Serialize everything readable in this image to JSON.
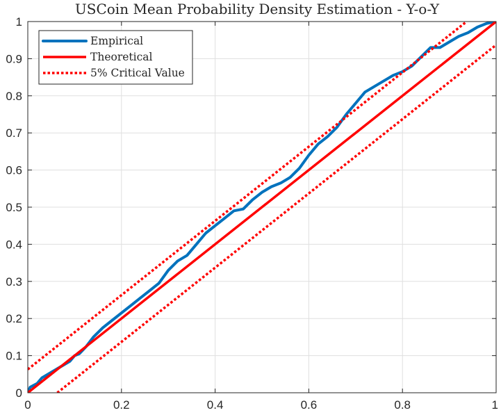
{
  "chart_data": {
    "type": "line",
    "title": "USCoin Mean Probability Density Estimation - Y-o-Y",
    "xlabel": "",
    "ylabel": "",
    "xlim": [
      0,
      1
    ],
    "ylim": [
      0,
      1
    ],
    "grid": true,
    "legend_position": "top-left",
    "x_ticks": [
      0,
      0.2,
      0.4,
      0.6,
      0.8,
      1
    ],
    "x_tick_labels": [
      "0",
      "0.2",
      "0.4",
      "0.6",
      "0.8",
      "1"
    ],
    "y_ticks": [
      0,
      0.1,
      0.2,
      0.3,
      0.4,
      0.5,
      0.6,
      0.7,
      0.8,
      0.9,
      1
    ],
    "y_tick_labels": [
      "0",
      "0.1",
      "0.2",
      "0.3",
      "0.4",
      "0.5",
      "0.6",
      "0.7",
      "0.8",
      "0.9",
      "1"
    ],
    "series": [
      {
        "name": "Empirical",
        "color": "#0072BD",
        "style": "solid",
        "x": [
          0,
          0.005,
          0.02,
          0.03,
          0.05,
          0.07,
          0.09,
          0.1,
          0.11,
          0.125,
          0.14,
          0.16,
          0.18,
          0.2,
          0.22,
          0.24,
          0.26,
          0.28,
          0.3,
          0.32,
          0.34,
          0.36,
          0.38,
          0.4,
          0.42,
          0.44,
          0.46,
          0.48,
          0.5,
          0.52,
          0.54,
          0.56,
          0.58,
          0.6,
          0.62,
          0.64,
          0.66,
          0.68,
          0.7,
          0.72,
          0.74,
          0.76,
          0.78,
          0.8,
          0.82,
          0.84,
          0.86,
          0.88,
          0.9,
          0.92,
          0.94,
          0.96,
          0.98,
          1
        ],
        "y": [
          0,
          0.015,
          0.025,
          0.04,
          0.055,
          0.07,
          0.085,
          0.1,
          0.105,
          0.125,
          0.15,
          0.175,
          0.195,
          0.215,
          0.235,
          0.255,
          0.275,
          0.295,
          0.33,
          0.355,
          0.37,
          0.4,
          0.43,
          0.45,
          0.47,
          0.49,
          0.495,
          0.52,
          0.54,
          0.555,
          0.565,
          0.58,
          0.605,
          0.64,
          0.67,
          0.69,
          0.715,
          0.75,
          0.78,
          0.81,
          0.825,
          0.84,
          0.855,
          0.865,
          0.88,
          0.905,
          0.93,
          0.93,
          0.945,
          0.96,
          0.97,
          0.985,
          0.995,
          1
        ]
      },
      {
        "name": "Theoretical",
        "color": "#FF0000",
        "style": "solid",
        "x": [
          0,
          1
        ],
        "y": [
          0,
          1
        ]
      },
      {
        "name": "5% Critical Value",
        "color": "#FF0000",
        "style": "dotted",
        "segments": [
          {
            "x": [
              0,
              0.937
            ],
            "y": [
              0.063,
              1
            ]
          },
          {
            "x": [
              0.063,
              1
            ],
            "y": [
              0,
              0.937
            ]
          }
        ]
      }
    ]
  }
}
